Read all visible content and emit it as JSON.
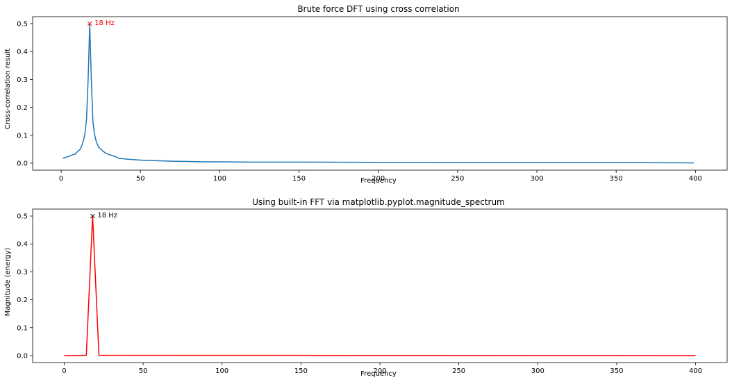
{
  "chart_data": [
    {
      "type": "line",
      "title": "Brute force DFT using cross correlation",
      "xlabel": "Frequency",
      "ylabel": "Cross-correlation result",
      "xlim": [
        -18,
        420
      ],
      "ylim": [
        -0.025,
        0.525
      ],
      "xticks": [
        0,
        50,
        100,
        150,
        200,
        250,
        300,
        350,
        400
      ],
      "yticks": [
        0.0,
        0.1,
        0.2,
        0.3,
        0.4,
        0.5
      ],
      "line_color": "#1f77b4",
      "series": [
        {
          "x": [
            1,
            3,
            5,
            7,
            9,
            10,
            12,
            13,
            14,
            15,
            16,
            17,
            18,
            19,
            20,
            21,
            22,
            23,
            24,
            26,
            28,
            30,
            33,
            35,
            36,
            38,
            40,
            45,
            50,
            60,
            70,
            80,
            90,
            100,
            120,
            150,
            200,
            250,
            300,
            350,
            399
          ],
          "y": [
            0.018,
            0.021,
            0.025,
            0.03,
            0.033,
            0.04,
            0.05,
            0.063,
            0.08,
            0.105,
            0.16,
            0.3,
            0.5,
            0.3,
            0.15,
            0.105,
            0.08,
            0.065,
            0.055,
            0.045,
            0.036,
            0.031,
            0.026,
            0.022,
            0.018,
            0.017,
            0.015,
            0.013,
            0.011,
            0.009,
            0.007,
            0.006,
            0.005,
            0.005,
            0.004,
            0.004,
            0.003,
            0.002,
            0.002,
            0.002,
            0.001
          ]
        }
      ],
      "annotation": {
        "x": 18,
        "y": 0.5,
        "text": "18 Hz",
        "color": "#ff0000",
        "marker": "x"
      }
    },
    {
      "type": "line",
      "title": "Using built-in FFT via matplotlib.pyplot.magnitude_spectrum",
      "xlabel": "Frequency",
      "ylabel": "Magnitude (energy)",
      "xlim": [
        -20,
        420
      ],
      "ylim": [
        -0.025,
        0.525
      ],
      "xticks": [
        0,
        50,
        100,
        150,
        200,
        250,
        300,
        350,
        400
      ],
      "yticks": [
        0.0,
        0.1,
        0.2,
        0.3,
        0.4,
        0.5
      ],
      "line_color": "#ff0000",
      "series": [
        {
          "x": [
            0,
            14,
            18,
            22,
            400
          ],
          "y": [
            0.0,
            0.001,
            0.5,
            0.001,
            0.0
          ]
        }
      ],
      "annotation": {
        "x": 18,
        "y": 0.5,
        "text": "18 Hz",
        "color": "#000000",
        "marker": "x"
      }
    }
  ]
}
